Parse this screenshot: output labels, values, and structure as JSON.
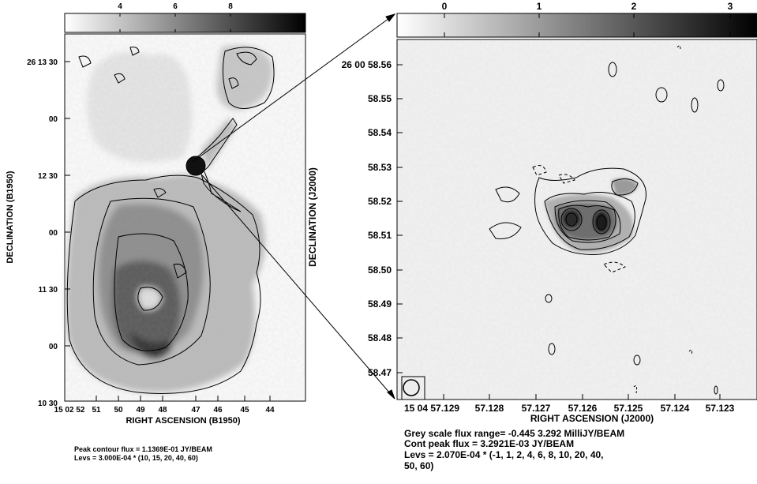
{
  "left_panel": {
    "colorbar_ticks": [
      "4",
      "6",
      "8"
    ],
    "dec_ticks": [
      "26 13 30",
      "00",
      "12 30",
      "00",
      "11 30",
      "00",
      "10 30"
    ],
    "ra_ticks": [
      "15 02 52",
      "51",
      "50",
      "49",
      "48",
      "47",
      "46",
      "45",
      "44"
    ],
    "xlabel": "RIGHT ASCENSION (B1950)",
    "ylabel": "DECLINATION (B1950)",
    "caption_line1": "Peak contour flux = 1.1369E-01 JY/BEAM",
    "caption_line2": "Levs = 3.000E-04 * (10, 15, 20, 40, 60)"
  },
  "right_panel": {
    "colorbar_ticks": [
      "0",
      "1",
      "2",
      "3"
    ],
    "dec_ticks": [
      "26 00 58.56",
      "58.55",
      "58.54",
      "58.53",
      "58.52",
      "58.51",
      "58.50",
      "58.49",
      "58.48",
      "58.47"
    ],
    "ra_ticks": [
      "15 04 57.129",
      "57.128",
      "57.127",
      "57.126",
      "57.125",
      "57.124",
      "57.123"
    ],
    "xlabel": "RIGHT ASCENSION (J2000)",
    "ylabel": "DECLINATION (J2000)",
    "caption_line1": "Grey scale flux range= -0.445 3.292 MilliJY/BEAM",
    "caption_line2": "Cont peak flux = 3.2921E-03 JY/BEAM",
    "caption_line3": "Levs = 2.070E-04 * (-1, 1, 2, 4, 6, 8, 10, 20, 40,",
    "caption_line4": "50, 60)"
  },
  "colors": {
    "ink": "#000000",
    "background": "#f2f2f2"
  }
}
